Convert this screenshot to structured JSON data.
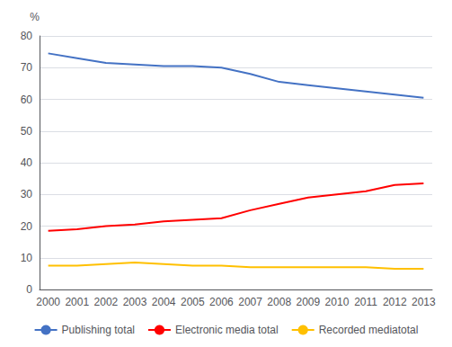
{
  "chart_data": {
    "type": "line",
    "ylabel": "%",
    "x": [
      2000,
      2001,
      2002,
      2003,
      2004,
      2005,
      2006,
      2007,
      2008,
      2009,
      2010,
      2011,
      2012,
      2013
    ],
    "series": [
      {
        "name": "Publishing total",
        "color": "#4472C4",
        "values": [
          74.5,
          73.0,
          71.5,
          71.0,
          70.5,
          70.5,
          70.0,
          68.0,
          65.5,
          64.5,
          63.5,
          62.5,
          61.5,
          60.5
        ]
      },
      {
        "name": "Electronic media total",
        "color": "#FF0000",
        "values": [
          18.5,
          19.0,
          20.0,
          20.5,
          21.5,
          22.0,
          22.5,
          25.0,
          27.0,
          29.0,
          30.0,
          31.0,
          33.0,
          33.5
        ]
      },
      {
        "name": "Recorded mediatotal",
        "color": "#FFC000",
        "values": [
          7.5,
          7.5,
          8.0,
          8.5,
          8.0,
          7.5,
          7.5,
          7.0,
          7.0,
          7.0,
          7.0,
          7.0,
          6.5,
          6.5
        ]
      }
    ],
    "xlim": [
      1999.7,
      2013.3
    ],
    "xticks": [
      2000,
      2001,
      2002,
      2003,
      2004,
      2005,
      2006,
      2007,
      2008,
      2009,
      2010,
      2011,
      2012,
      2013
    ],
    "ylim": [
      0,
      80
    ],
    "yticks": [
      0,
      10,
      20,
      30,
      40,
      50,
      60,
      70,
      80
    ],
    "grid": true,
    "legend": "bottom"
  }
}
